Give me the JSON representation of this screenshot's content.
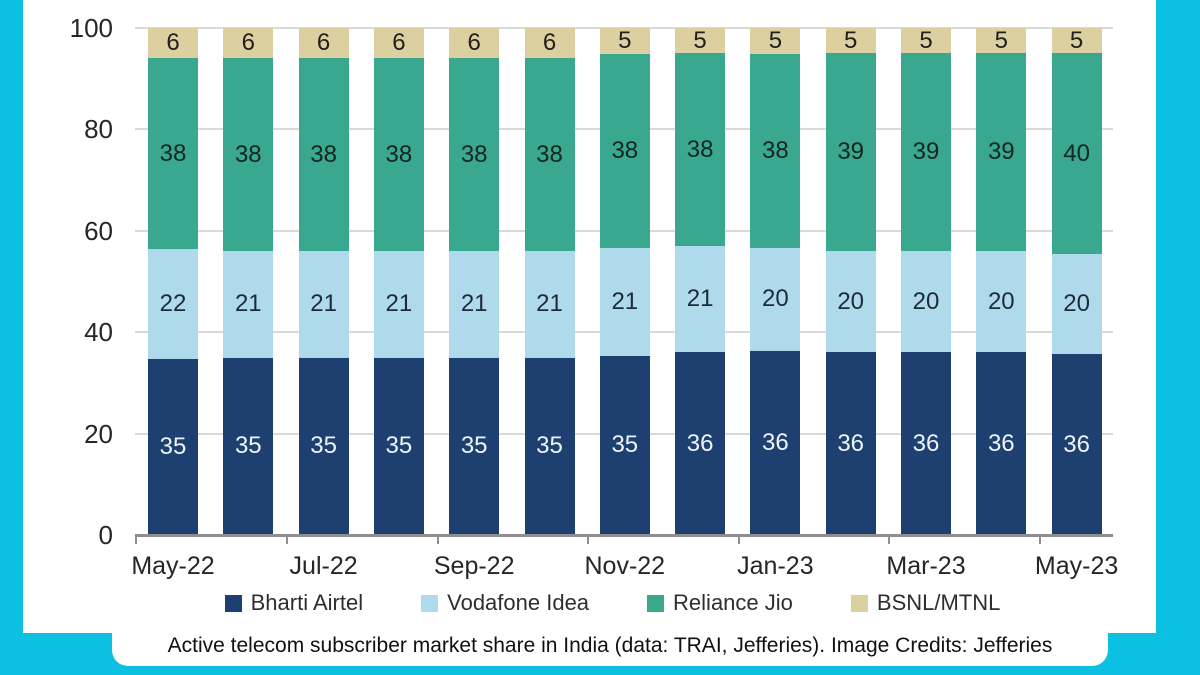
{
  "background_color": "#0bc0e0",
  "caption": {
    "text": "Active telecom subscriber market share in India (data: TRAI, Jefferies). Image Credits: Jefferies"
  },
  "chart_data": {
    "type": "bar",
    "stacked": true,
    "title": "",
    "xlabel": "",
    "ylabel": "",
    "n_bars": 13,
    "x_tick_labels": [
      "May-22",
      "Jul-22",
      "Sep-22",
      "Nov-22",
      "Jan-23",
      "Mar-23",
      "May-23"
    ],
    "x_label_every": 2,
    "y_ticks": [
      0,
      20,
      40,
      60,
      80,
      100
    ],
    "ylim": [
      0,
      100
    ],
    "grid": true,
    "legend_position": "bottom",
    "series": [
      {
        "name": "Bharti Airtel",
        "color": "#1d4070",
        "label_color": "#eef4fa",
        "values": [
          35,
          35,
          35,
          35,
          35,
          35,
          35,
          36,
          36,
          36,
          36,
          36,
          36
        ]
      },
      {
        "name": "Vodafone Idea",
        "color": "#aedaec",
        "label_color": "#1e2b38",
        "values": [
          22,
          21,
          21,
          21,
          21,
          21,
          21,
          21,
          20,
          20,
          20,
          20,
          20
        ]
      },
      {
        "name": "Reliance Jio",
        "color": "#3aa78f",
        "label_color": "#132620",
        "values": [
          38,
          38,
          38,
          38,
          38,
          38,
          38,
          38,
          38,
          39,
          39,
          39,
          40
        ]
      },
      {
        "name": "BSNL/MTNL",
        "color": "#ddd0a0",
        "label_color": "#20201c",
        "values": [
          6,
          6,
          6,
          6,
          6,
          6,
          5,
          5,
          5,
          5,
          5,
          5,
          5
        ]
      }
    ],
    "style_colors": {
      "grid": "#d9d9d9",
      "axis": "#8f8f8f",
      "tick_text": "#262626"
    }
  }
}
